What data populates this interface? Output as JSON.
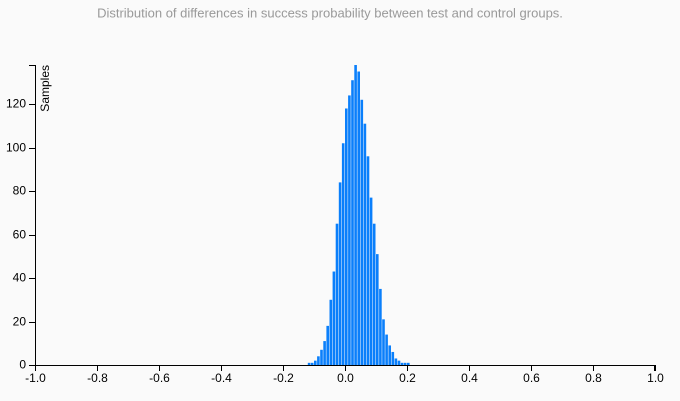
{
  "chart_data": {
    "type": "histogram",
    "title": "Distribution of differences in success probability between test and control groups.",
    "y_label": "Samples",
    "color": "#0a7ffb",
    "bins": [
      -0.13,
      -0.12,
      -0.11,
      -0.1,
      -0.09,
      -0.08,
      -0.07,
      -0.06,
      -0.05,
      -0.04,
      -0.03,
      -0.02,
      -0.01,
      0.0,
      0.01,
      0.02,
      0.03,
      0.04,
      0.05,
      0.06,
      0.07,
      0.08,
      0.09,
      0.1,
      0.11,
      0.12,
      0.13,
      0.14,
      0.15,
      0.16,
      0.17,
      0.18,
      0.19,
      0.2,
      0.21,
      0.22
    ],
    "counts": [
      0,
      1,
      1,
      2,
      4,
      7,
      11,
      18,
      30,
      43,
      65,
      84,
      102,
      118,
      124,
      131,
      138,
      135,
      122,
      111,
      96,
      77,
      65,
      51,
      35,
      21,
      14,
      9,
      6,
      3,
      2,
      1,
      1,
      1,
      0
    ],
    "xlim": [
      -1,
      1
    ],
    "xticks": [
      {
        "value": -1,
        "label": "-1.0"
      },
      -0.8,
      -0.6,
      -0.4,
      -0.2,
      {
        "value": 0,
        "label": "0.0"
      },
      0.2,
      0.4,
      0.6,
      0.8,
      {
        "value": 1,
        "label": "1.0"
      }
    ],
    "ylim": [
      0,
      138
    ],
    "yticks": [
      0,
      20,
      40,
      60,
      80,
      100,
      120
    ]
  }
}
